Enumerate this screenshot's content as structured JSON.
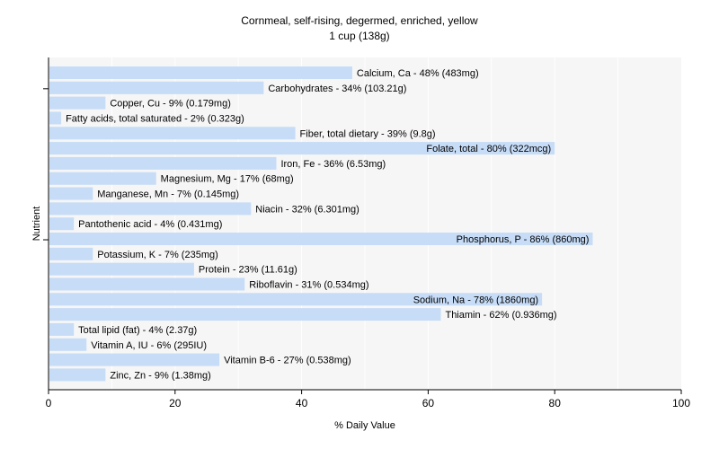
{
  "chart_data": {
    "type": "bar",
    "orientation": "horizontal",
    "title": "Cornmeal, self-rising, degermed, enriched, yellow",
    "subtitle": "1 cup (138g)",
    "xlabel": "% Daily Value",
    "ylabel": "Nutrient",
    "xlim": [
      0,
      100
    ],
    "xticks": [
      0,
      20,
      40,
      60,
      80,
      100
    ],
    "grid": true,
    "legend": "none",
    "colors": {
      "bar": "#c6dcf7",
      "plot_background": "#f6f6f6",
      "grid": "#ffffff",
      "axis": "#000000",
      "text": "#000000"
    },
    "categories": [
      "Calcium, Ca",
      "Carbohydrates",
      "Copper, Cu",
      "Fatty acids, total saturated",
      "Fiber, total dietary",
      "Folate, total",
      "Iron, Fe",
      "Magnesium, Mg",
      "Manganese, Mn",
      "Niacin",
      "Pantothenic acid",
      "Phosphorus, P",
      "Potassium, K",
      "Protein",
      "Riboflavin",
      "Sodium, Na",
      "Thiamin",
      "Total lipid (fat)",
      "Vitamin A, IU",
      "Vitamin B-6",
      "Zinc, Zn"
    ],
    "values": [
      48,
      34,
      9,
      2,
      39,
      80,
      36,
      17,
      7,
      32,
      4,
      86,
      7,
      23,
      31,
      78,
      62,
      4,
      6,
      27,
      9
    ],
    "labels": [
      "Calcium, Ca - 48% (483mg)",
      "Carbohydrates - 34% (103.21g)",
      "Copper, Cu - 9% (0.179mg)",
      "Fatty acids, total saturated - 2% (0.323g)",
      "Fiber, total dietary - 39% (9.8g)",
      "Folate, total - 80% (322mcg)",
      "Iron, Fe - 36% (6.53mg)",
      "Magnesium, Mg - 17% (68mg)",
      "Manganese, Mn - 7% (0.145mg)",
      "Niacin - 32% (6.301mg)",
      "Pantothenic acid - 4% (0.431mg)",
      "Phosphorus, P - 86% (860mg)",
      "Potassium, K - 7% (235mg)",
      "Protein - 23% (11.61g)",
      "Riboflavin - 31% (0.534mg)",
      "Sodium, Na - 78% (1860mg)",
      "Thiamin - 62% (0.936mg)",
      "Total lipid (fat) - 4% (2.37g)",
      "Vitamin A, IU - 6% (295IU)",
      "Vitamin B-6 - 27% (0.538mg)",
      "Zinc, Zn - 9% (1.38mg)"
    ]
  }
}
